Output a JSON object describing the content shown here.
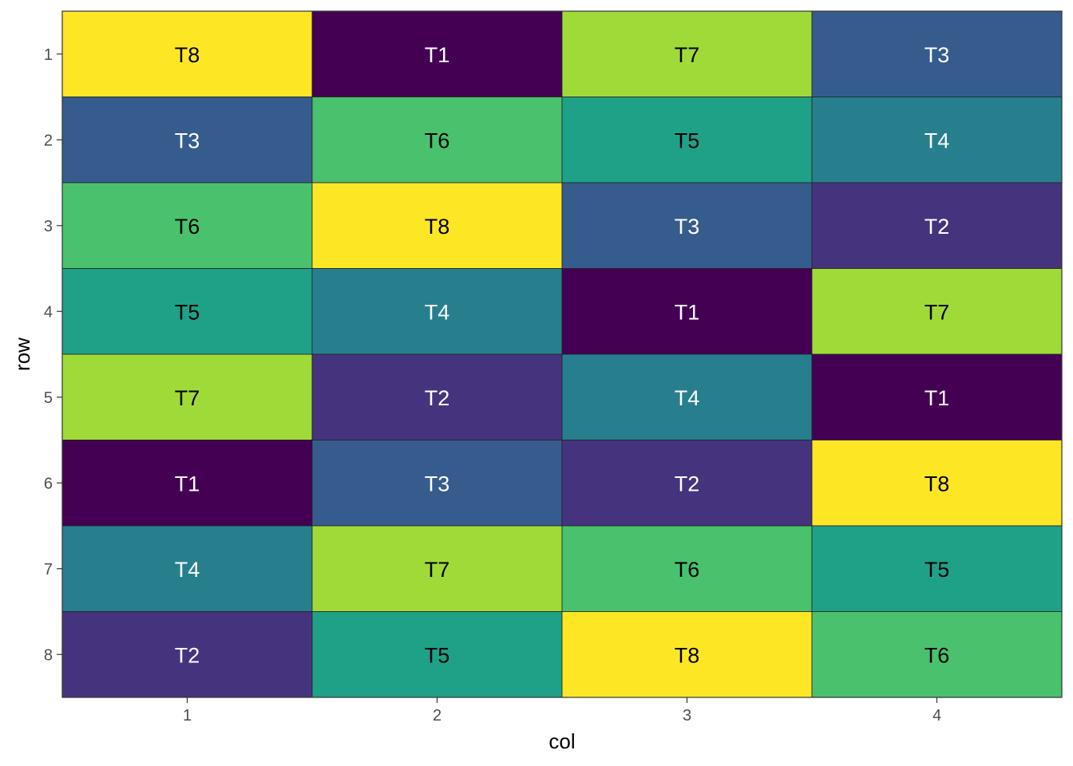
{
  "chart_data": {
    "type": "heatmap",
    "title": "",
    "xlabel": "col",
    "ylabel": "row",
    "x_categories": [
      "1",
      "2",
      "3",
      "4"
    ],
    "y_categories": [
      "1",
      "2",
      "3",
      "4",
      "5",
      "6",
      "7",
      "8"
    ],
    "y_direction": "top-to-bottom",
    "grid": false,
    "legend": "none",
    "cells": [
      [
        "T8",
        "T1",
        "T7",
        "T3"
      ],
      [
        "T3",
        "T6",
        "T5",
        "T4"
      ],
      [
        "T6",
        "T8",
        "T3",
        "T2"
      ],
      [
        "T5",
        "T4",
        "T1",
        "T7"
      ],
      [
        "T7",
        "T2",
        "T4",
        "T1"
      ],
      [
        "T1",
        "T3",
        "T2",
        "T8"
      ],
      [
        "T4",
        "T7",
        "T6",
        "T5"
      ],
      [
        "T2",
        "T5",
        "T8",
        "T6"
      ]
    ],
    "treatment_colors": {
      "T1": "#440154",
      "T2": "#46337E",
      "T3": "#365C8D",
      "T4": "#277F8E",
      "T5": "#1FA187",
      "T6": "#4AC16D",
      "T7": "#A0DA39",
      "T8": "#FDE725"
    },
    "treatment_text_colors": {
      "T1": "#ffffff",
      "T2": "#ffffff",
      "T3": "#ffffff",
      "T4": "#ffffff",
      "T5": "#000000",
      "T6": "#000000",
      "T7": "#000000",
      "T8": "#000000"
    }
  }
}
